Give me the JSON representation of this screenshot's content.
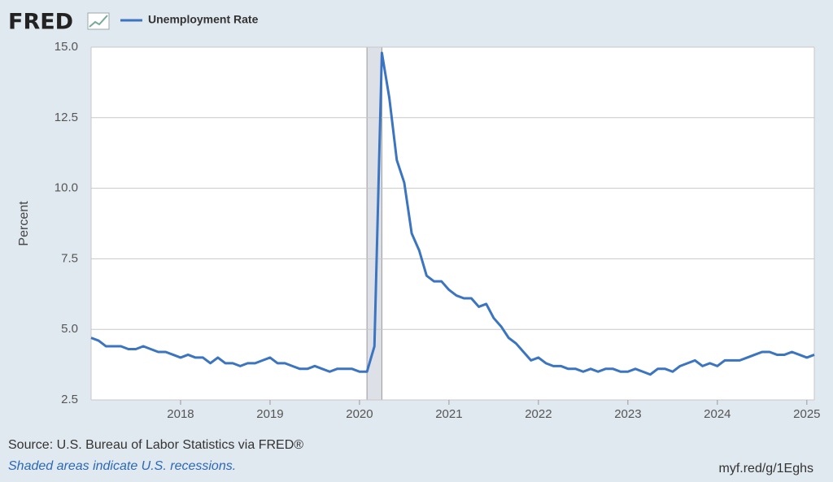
{
  "logo": "FRED",
  "source": "Source: U.S. Bureau of Labor Statistics via FRED®",
  "note": "Shaded areas indicate U.S. recessions.",
  "link": "myf.red/g/1Eghs",
  "chart_data": {
    "type": "line",
    "y_label": "Percent",
    "x": [
      "2017-01",
      "2017-02",
      "2017-03",
      "2017-04",
      "2017-05",
      "2017-06",
      "2017-07",
      "2017-08",
      "2017-09",
      "2017-10",
      "2017-11",
      "2017-12",
      "2018-01",
      "2018-02",
      "2018-03",
      "2018-04",
      "2018-05",
      "2018-06",
      "2018-07",
      "2018-08",
      "2018-09",
      "2018-10",
      "2018-11",
      "2018-12",
      "2019-01",
      "2019-02",
      "2019-03",
      "2019-04",
      "2019-05",
      "2019-06",
      "2019-07",
      "2019-08",
      "2019-09",
      "2019-10",
      "2019-11",
      "2019-12",
      "2020-01",
      "2020-02",
      "2020-03",
      "2020-04",
      "2020-05",
      "2020-06",
      "2020-07",
      "2020-08",
      "2020-09",
      "2020-10",
      "2020-11",
      "2020-12",
      "2021-01",
      "2021-02",
      "2021-03",
      "2021-04",
      "2021-05",
      "2021-06",
      "2021-07",
      "2021-08",
      "2021-09",
      "2021-10",
      "2021-11",
      "2021-12",
      "2022-01",
      "2022-02",
      "2022-03",
      "2022-04",
      "2022-05",
      "2022-06",
      "2022-07",
      "2022-08",
      "2022-09",
      "2022-10",
      "2022-11",
      "2022-12",
      "2023-01",
      "2023-02",
      "2023-03",
      "2023-04",
      "2023-05",
      "2023-06",
      "2023-07",
      "2023-08",
      "2023-09",
      "2023-10",
      "2023-11",
      "2023-12",
      "2024-01",
      "2024-02",
      "2024-03",
      "2024-04",
      "2024-05",
      "2024-06",
      "2024-07",
      "2024-08",
      "2024-09",
      "2024-10",
      "2024-11",
      "2024-12",
      "2025-01",
      "2025-02"
    ],
    "series": [
      {
        "name": "Unemployment Rate",
        "color": "#3b74c0",
        "values": [
          4.7,
          4.6,
          4.4,
          4.4,
          4.4,
          4.3,
          4.3,
          4.4,
          4.3,
          4.2,
          4.2,
          4.1,
          4.0,
          4.1,
          4.0,
          4.0,
          3.8,
          4.0,
          3.8,
          3.8,
          3.7,
          3.8,
          3.8,
          3.9,
          4.0,
          3.8,
          3.8,
          3.7,
          3.6,
          3.6,
          3.7,
          3.6,
          3.5,
          3.6,
          3.6,
          3.6,
          3.5,
          3.5,
          4.4,
          14.8,
          13.2,
          11.0,
          10.2,
          8.4,
          7.8,
          6.9,
          6.7,
          6.7,
          6.4,
          6.2,
          6.1,
          6.1,
          5.8,
          5.9,
          5.4,
          5.1,
          4.7,
          4.5,
          4.2,
          3.9,
          4.0,
          3.8,
          3.7,
          3.7,
          3.6,
          3.6,
          3.5,
          3.6,
          3.5,
          3.6,
          3.6,
          3.5,
          3.5,
          3.6,
          3.5,
          3.4,
          3.6,
          3.6,
          3.5,
          3.7,
          3.8,
          3.9,
          3.7,
          3.8,
          3.7,
          3.9,
          3.9,
          3.9,
          4.0,
          4.1,
          4.2,
          4.2,
          4.1,
          4.1,
          4.2,
          4.1,
          4.0,
          4.1
        ]
      }
    ],
    "recessions": [
      [
        "2020-02",
        "2020-04"
      ]
    ],
    "recession_color": "#dde1e7",
    "xlim": [
      "2017-01",
      "2025-02"
    ],
    "xticks": [
      {
        "value": "2018-01",
        "label": "2018"
      },
      {
        "value": "2019-01",
        "label": "2019"
      },
      {
        "value": "2020-01",
        "label": "2020"
      },
      {
        "value": "2021-01",
        "label": "2021"
      },
      {
        "value": "2022-01",
        "label": "2022"
      },
      {
        "value": "2023-01",
        "label": "2023"
      },
      {
        "value": "2024-01",
        "label": "2024"
      },
      {
        "value": "2025-01",
        "label": "2025"
      }
    ],
    "ylim": [
      2.5,
      15
    ],
    "yticks": [
      2.5,
      {
        "value": 5,
        "label": "5.0"
      },
      7.5,
      {
        "value": 10,
        "label": "10.0"
      },
      12.5,
      {
        "value": 15,
        "label": "15.0"
      }
    ],
    "grid": true
  }
}
